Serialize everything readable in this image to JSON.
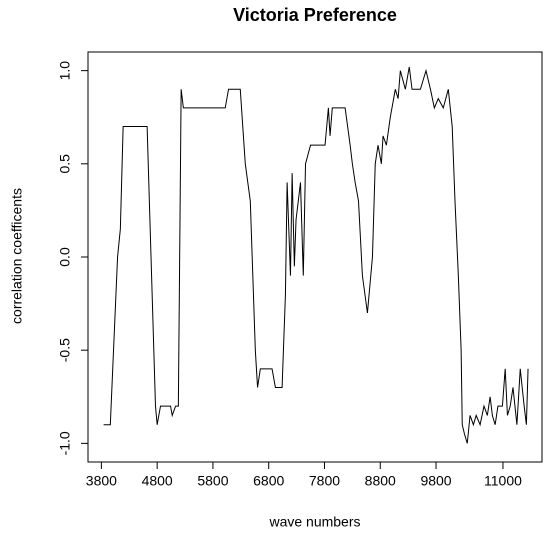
{
  "chart_data": {
    "type": "line",
    "title": "Victoria Preference",
    "x_label": "wave numbers",
    "y_label": "correlation coefficents",
    "xlim": [
      3560,
      11700
    ],
    "ylim": [
      -1.1,
      1.1
    ],
    "xticks": [
      3800,
      4800,
      5800,
      6800,
      7800,
      8800,
      9800,
      11000
    ],
    "yticks": [
      {
        "value": -1.0,
        "label": "-1.0"
      },
      -0.5,
      {
        "value": 0.0,
        "label": "0.0"
      },
      0.5,
      {
        "value": 1.0,
        "label": "1.0"
      }
    ],
    "series": [
      {
        "color": "#000000",
        "x": [
          3840,
          3960,
          4090,
          4140,
          4190,
          4620,
          4770,
          4800,
          4860,
          5040,
          5070,
          5130,
          5180,
          5230,
          5270,
          5310,
          6020,
          6080,
          6290,
          6380,
          6470,
          6560,
          6600,
          6650,
          6860,
          6920,
          7040,
          7100,
          7130,
          7190,
          7220,
          7260,
          7290,
          7370,
          7420,
          7460,
          7550,
          7810,
          7870,
          7900,
          7940,
          8170,
          8260,
          8300,
          8350,
          8410,
          8480,
          8570,
          8660,
          8710,
          8760,
          8820,
          8850,
          8910,
          8980,
          9010,
          9070,
          9120,
          9160,
          9250,
          9320,
          9370,
          9520,
          9620,
          9700,
          9770,
          9840,
          9930,
          10020,
          10090,
          10140,
          10200,
          10250,
          10270,
          10310,
          10360,
          10410,
          10470,
          10520,
          10590,
          10660,
          10720,
          10770,
          10810,
          10860,
          10910,
          10990,
          11040,
          11080,
          11130,
          11180,
          11250,
          11310,
          11380,
          11420,
          11450
        ],
        "values": [
          -0.9,
          -0.9,
          0.0,
          0.15,
          0.7,
          0.7,
          -0.8,
          -0.9,
          -0.8,
          -0.8,
          -0.85,
          -0.8,
          -0.8,
          0.9,
          0.8,
          0.8,
          0.8,
          0.9,
          0.9,
          0.5,
          0.3,
          -0.5,
          -0.7,
          -0.6,
          -0.6,
          -0.7,
          -0.7,
          -0.2,
          0.4,
          -0.1,
          0.45,
          -0.05,
          0.2,
          0.4,
          -0.1,
          0.5,
          0.6,
          0.6,
          0.8,
          0.65,
          0.8,
          0.8,
          0.6,
          0.5,
          0.4,
          0.3,
          -0.1,
          -0.3,
          0.0,
          0.5,
          0.6,
          0.5,
          0.65,
          0.6,
          0.75,
          0.8,
          0.9,
          0.85,
          1.0,
          0.9,
          1.02,
          0.9,
          0.9,
          1.0,
          0.9,
          0.8,
          0.85,
          0.8,
          0.9,
          0.7,
          0.3,
          -0.1,
          -0.5,
          -0.9,
          -0.95,
          -1.0,
          -0.85,
          -0.9,
          -0.85,
          -0.9,
          -0.8,
          -0.85,
          -0.75,
          -0.85,
          -0.9,
          -0.8,
          -0.8,
          -0.6,
          -0.85,
          -0.8,
          -0.7,
          -0.9,
          -0.6,
          -0.8,
          -0.9,
          -0.6
        ]
      }
    ]
  }
}
